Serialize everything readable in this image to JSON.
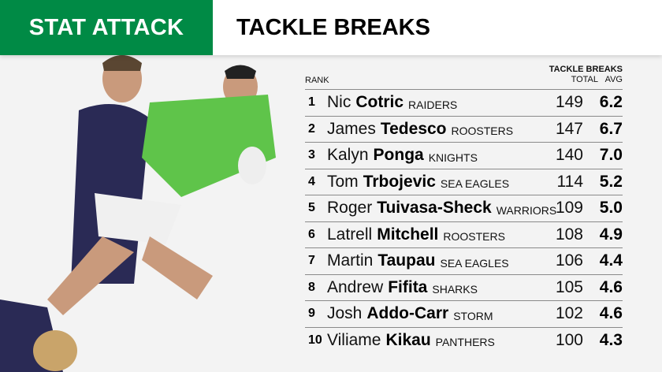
{
  "header": {
    "brand": "STAT ATTACK",
    "title": "TACKLE BREAKS"
  },
  "colors": {
    "brand": "#008a45"
  },
  "table": {
    "rank_label": "RANK",
    "stat_label": "TACKLE BREAKS",
    "total_label": "TOTAL",
    "avg_label": "AVG",
    "rows": [
      {
        "rank": "1",
        "first": "Nic",
        "last": "Cotric",
        "club": "RAIDERS",
        "total": "149",
        "avg": "6.2"
      },
      {
        "rank": "2",
        "first": "James",
        "last": "Tedesco",
        "club": "ROOSTERS",
        "total": "147",
        "avg": "6.7"
      },
      {
        "rank": "3",
        "first": "Kalyn",
        "last": "Ponga",
        "club": "KNIGHTS",
        "total": "140",
        "avg": "7.0"
      },
      {
        "rank": "4",
        "first": "Tom",
        "last": "Trbojevic",
        "club": "SEA EAGLES",
        "total": "114",
        "avg": "5.2"
      },
      {
        "rank": "5",
        "first": "Roger",
        "last": "Tuivasa-Sheck",
        "club": "WARRIORS",
        "total": "109",
        "avg": "5.0"
      },
      {
        "rank": "6",
        "first": "Latrell",
        "last": "Mitchell",
        "club": "ROOSTERS",
        "total": "108",
        "avg": "4.9"
      },
      {
        "rank": "7",
        "first": "Martin",
        "last": "Taupau",
        "club": "SEA EAGLES",
        "total": "106",
        "avg": "4.4"
      },
      {
        "rank": "8",
        "first": "Andrew",
        "last": "Fifita",
        "club": "SHARKS",
        "total": "105",
        "avg": "4.6"
      },
      {
        "rank": "9",
        "first": "Josh",
        "last": "Addo-Carr",
        "club": "STORM",
        "total": "102",
        "avg": "4.6"
      },
      {
        "rank": "10",
        "first": "Viliame",
        "last": "Kikau",
        "club": "PANTHERS",
        "total": "100",
        "avg": "4.3"
      }
    ]
  }
}
